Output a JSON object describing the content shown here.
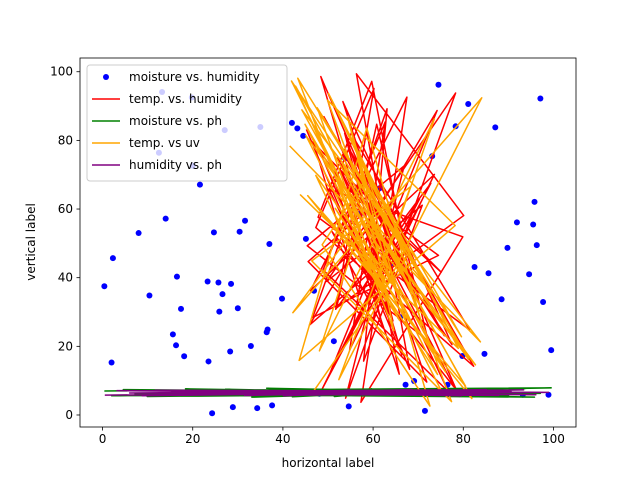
{
  "chart_data": {
    "type": "scatter",
    "title": "",
    "xlabel": "horizontal label",
    "ylabel": "vertical label",
    "xlim": [
      -5,
      105
    ],
    "ylim": [
      -3.5,
      104
    ],
    "xticks": [
      0,
      20,
      40,
      60,
      80,
      100
    ],
    "yticks": [
      0,
      20,
      40,
      60,
      80,
      100
    ],
    "grid": false,
    "legend_position": "top-left",
    "series": [
      {
        "name": "moisture vs. humidity",
        "kind": "scatter",
        "color": "#0000ff",
        "x": [
          0.4,
          2,
          2.3,
          8,
          10.4,
          12.5,
          13.2,
          14,
          15.6,
          16.3,
          16.5,
          17.4,
          18.1,
          19.8,
          20,
          21.6,
          23.3,
          23.5,
          24.3,
          24.7,
          25.7,
          25.9,
          26.6,
          27.1,
          28.3,
          28.5,
          28.9,
          30,
          30.4,
          31.6,
          32.9,
          34.3,
          35,
          36.4,
          36.6,
          37,
          37.6,
          39.8,
          42,
          43.2,
          44.5,
          45.1,
          46.9,
          48.1,
          51.3,
          53.8,
          54.6,
          56.2,
          57.3,
          59.2,
          61.5,
          63.7,
          66,
          67.2,
          69.1,
          71.5,
          73.1,
          74.5,
          76.5,
          78.3,
          79.8,
          81.1,
          82.5,
          84.7,
          85.6,
          87.1,
          88.5,
          89.8,
          91.9,
          93.2,
          94.6,
          95.5,
          95.8,
          96.3,
          97.1,
          97.7,
          98.9,
          99.5
        ],
        "y": [
          37.5,
          15.3,
          45.7,
          53,
          34.8,
          76.4,
          94.1,
          57.2,
          23.5,
          20.3,
          40.3,
          30.9,
          17.1,
          92.5,
          72.6,
          67.1,
          38.9,
          15.6,
          0.5,
          53.2,
          38.6,
          30.1,
          35.2,
          83,
          18.5,
          38.2,
          2.3,
          31.1,
          53.4,
          56.6,
          20.1,
          2,
          83.9,
          24.1,
          24.9,
          49.8,
          2.8,
          33.9,
          85.1,
          83.5,
          81.3,
          51.3,
          36.2,
          6.2,
          21.5,
          74.8,
          2.5,
          65.2,
          58.8,
          54.2,
          66.1,
          43.8,
          28.5,
          8.8,
          9.9,
          1.2,
          75.4,
          96.2,
          8.8,
          84.1,
          17.2,
          90.6,
          43.1,
          17.8,
          41.3,
          83.8,
          33.7,
          48.7,
          56.1,
          5.9,
          41,
          55.5,
          62.1,
          49.5,
          92.2,
          32.9,
          5.9,
          18.9
        ]
      },
      {
        "name": "temp. vs. humidity",
        "kind": "line",
        "color": "#ff0000",
        "x": [
          45.2,
          66.4,
          48.4,
          79.1,
          52.8,
          61.3,
          45.9,
          74.2,
          50.5,
          70.3,
          56.8,
          46.7,
          77.5,
          53.3,
          63.9,
          48.6,
          72.8,
          51.7,
          60.2,
          47.3,
          82.3,
          55.2,
          68.6,
          49.1,
          75.8,
          58.4,
          45.6,
          71.9,
          53.7,
          64.4,
          50.2,
          79.9,
          57.3,
          67.5,
          46.1,
          73.6,
          54.8,
          62.7,
          48.9,
          76.7,
          52.1,
          69.2,
          59.7,
          47.8,
          81.4,
          55.9,
          65.8,
          51.3,
          74.5,
          46.6,
          63.1,
          57.9,
          70.9,
          49.7,
          78.3,
          53.9,
          66.9,
          45.4,
          72.2,
          60.8,
          51.9,
          80.1,
          56.3,
          68.1,
          47.9,
          75.1,
          54.4,
          62.1,
          50.9,
          77.9
        ],
        "y": [
          83.2,
          17.5,
          98.6,
          5.4,
          71.3,
          43.8,
          26.2,
          88.7,
          12.4,
          62.9,
          35.1,
          79.8,
          20.5,
          91.3,
          48.2,
          7.3,
          67.5,
          30.8,
          95.1,
          54.6,
          14.2,
          76.4,
          39.5,
          86.9,
          23.1,
          59.3,
          44.7,
          9.6,
          82.1,
          27.4,
          65.8,
          51.9,
          3.7,
          92.6,
          36.2,
          70.1,
          18.9,
          85.4,
          42.3,
          6.8,
          74.9,
          33.5,
          97.2,
          57.6,
          24.8,
          80.3,
          11.9,
          68.7,
          46.5,
          28.4,
          89.2,
          15.7,
          61.1,
          38.9,
          93.8,
          4.9,
          72.6,
          49.3,
          21.6,
          84.7,
          31.2,
          58.1,
          99.4,
          13.3,
          77.8,
          41.6,
          66.3,
          25.9,
          53.4,
          8.2
        ]
      },
      {
        "name": "moisture vs. ph",
        "kind": "line",
        "color": "#008000",
        "x": [
          0.4,
          99.5,
          2,
          97.1,
          4.6,
          95.8,
          7.2,
          93.9,
          9.9,
          92.3,
          12.6,
          90.1,
          15.3,
          87.8,
          18.4,
          85.5,
          21.2,
          83.2,
          24.1,
          80.9,
          27.3,
          78.6,
          30.2,
          76.3,
          33.1,
          73.9,
          36.4,
          71.6,
          39.2,
          69.2,
          42.1,
          66.8,
          45.3,
          64.5,
          48.2,
          62.1,
          51.4,
          59.7,
          54.3,
          57.2
        ],
        "y": [
          7,
          7.9,
          5.6,
          6.3,
          7.4,
          5.2,
          6.1,
          7.7,
          5.4,
          6.6,
          7.2,
          5.8,
          6.9,
          5.3,
          7.6,
          6.2,
          5.5,
          7.1,
          6.7,
          5.6,
          7.5,
          5.9,
          6.4,
          7.3,
          5.2,
          6.8,
          7.8,
          5.7,
          6.5,
          7,
          5.3,
          7.4,
          6,
          5.8,
          7.2,
          6.6,
          5.4,
          7.6,
          6.3,
          6.9
        ]
      },
      {
        "name": "temp. vs uv",
        "kind": "line",
        "color": "#ffa500",
        "x": [
          41.5,
          83.8,
          44.2,
          76.1,
          51.6,
          63.2,
          42.8,
          80.5,
          55.4,
          47.3,
          70.9,
          58.6,
          43.6,
          78.2,
          49.9,
          66.7,
          53.1,
          81.9,
          45.5,
          61.4,
          73.6,
          48.1,
          57.8,
          42.2,
          84.1,
          52.4,
          68.3,
          46.4,
          77.4,
          55.9,
          64.6,
          43.3,
          71.8,
          50.8,
          82.7,
          59.3,
          44.9,
          75.2,
          53.6,
          62.8,
          47.6,
          79.6,
          56.5,
          69.7,
          41.9,
          74.3,
          51.2,
          65.9,
          45.1,
          81.2,
          58.1,
          48.7,
          72.6,
          54.3,
          63.9,
          43.9,
          78.9,
          50.1,
          67.4,
          46.9
        ],
        "y": [
          78.4,
          21.3,
          88.9,
          12.5,
          60.2,
          35.6,
          95.8,
          8.4,
          47.3,
          69.8,
          26.1,
          83.6,
          15.9,
          55.2,
          91.7,
          31.4,
          73.5,
          4.8,
          63.9,
          40.2,
          86.3,
          18.7,
          57.6,
          29.8,
          92.4,
          10.3,
          66.5,
          44.9,
          3.9,
          79.2,
          24.6,
          98.1,
          37.8,
          71.1,
          14.6,
          52.3,
          84.7,
          6.9,
          62.4,
          33.2,
          89.5,
          22.8,
          75.9,
          42.6,
          97.3,
          11.8,
          58.9,
          27.5,
          81.4,
          16.2,
          68.2,
          49.6,
          2.6,
          86.9,
          38.5,
          64.1,
          19.4,
          93.7,
          45.8,
          7.1
        ]
      },
      {
        "name": "humidity vs. ph",
        "kind": "line",
        "color": "#800080",
        "x": [
          0.5,
          98.9,
          3.2,
          96.1,
          6,
          93.4,
          8.8,
          90.6,
          11.7,
          87.9,
          14.5,
          85.1,
          17.3,
          82.4,
          20.2,
          79.6,
          23,
          76.8,
          25.9,
          74.1,
          28.7,
          71.3,
          31.5,
          68.6,
          34.4,
          65.8,
          37.2,
          63,
          40.1,
          60.3,
          42.9,
          57.5,
          45.8,
          54.8,
          48.6,
          52
        ],
        "y": [
          5.8,
          6.6,
          7.1,
          5.9,
          6.4,
          7.3,
          5.6,
          6.9,
          7.2,
          5.7,
          6.2,
          7.4,
          5.9,
          6.5,
          7,
          5.6,
          6.8,
          7.3,
          6,
          5.8,
          7.1,
          6.6,
          5.7,
          7.4,
          6.3,
          5.9,
          6.9,
          7.2,
          5.6,
          6.5,
          7,
          6.1,
          5.8,
          7.3,
          6.4,
          6.7
        ]
      }
    ]
  }
}
